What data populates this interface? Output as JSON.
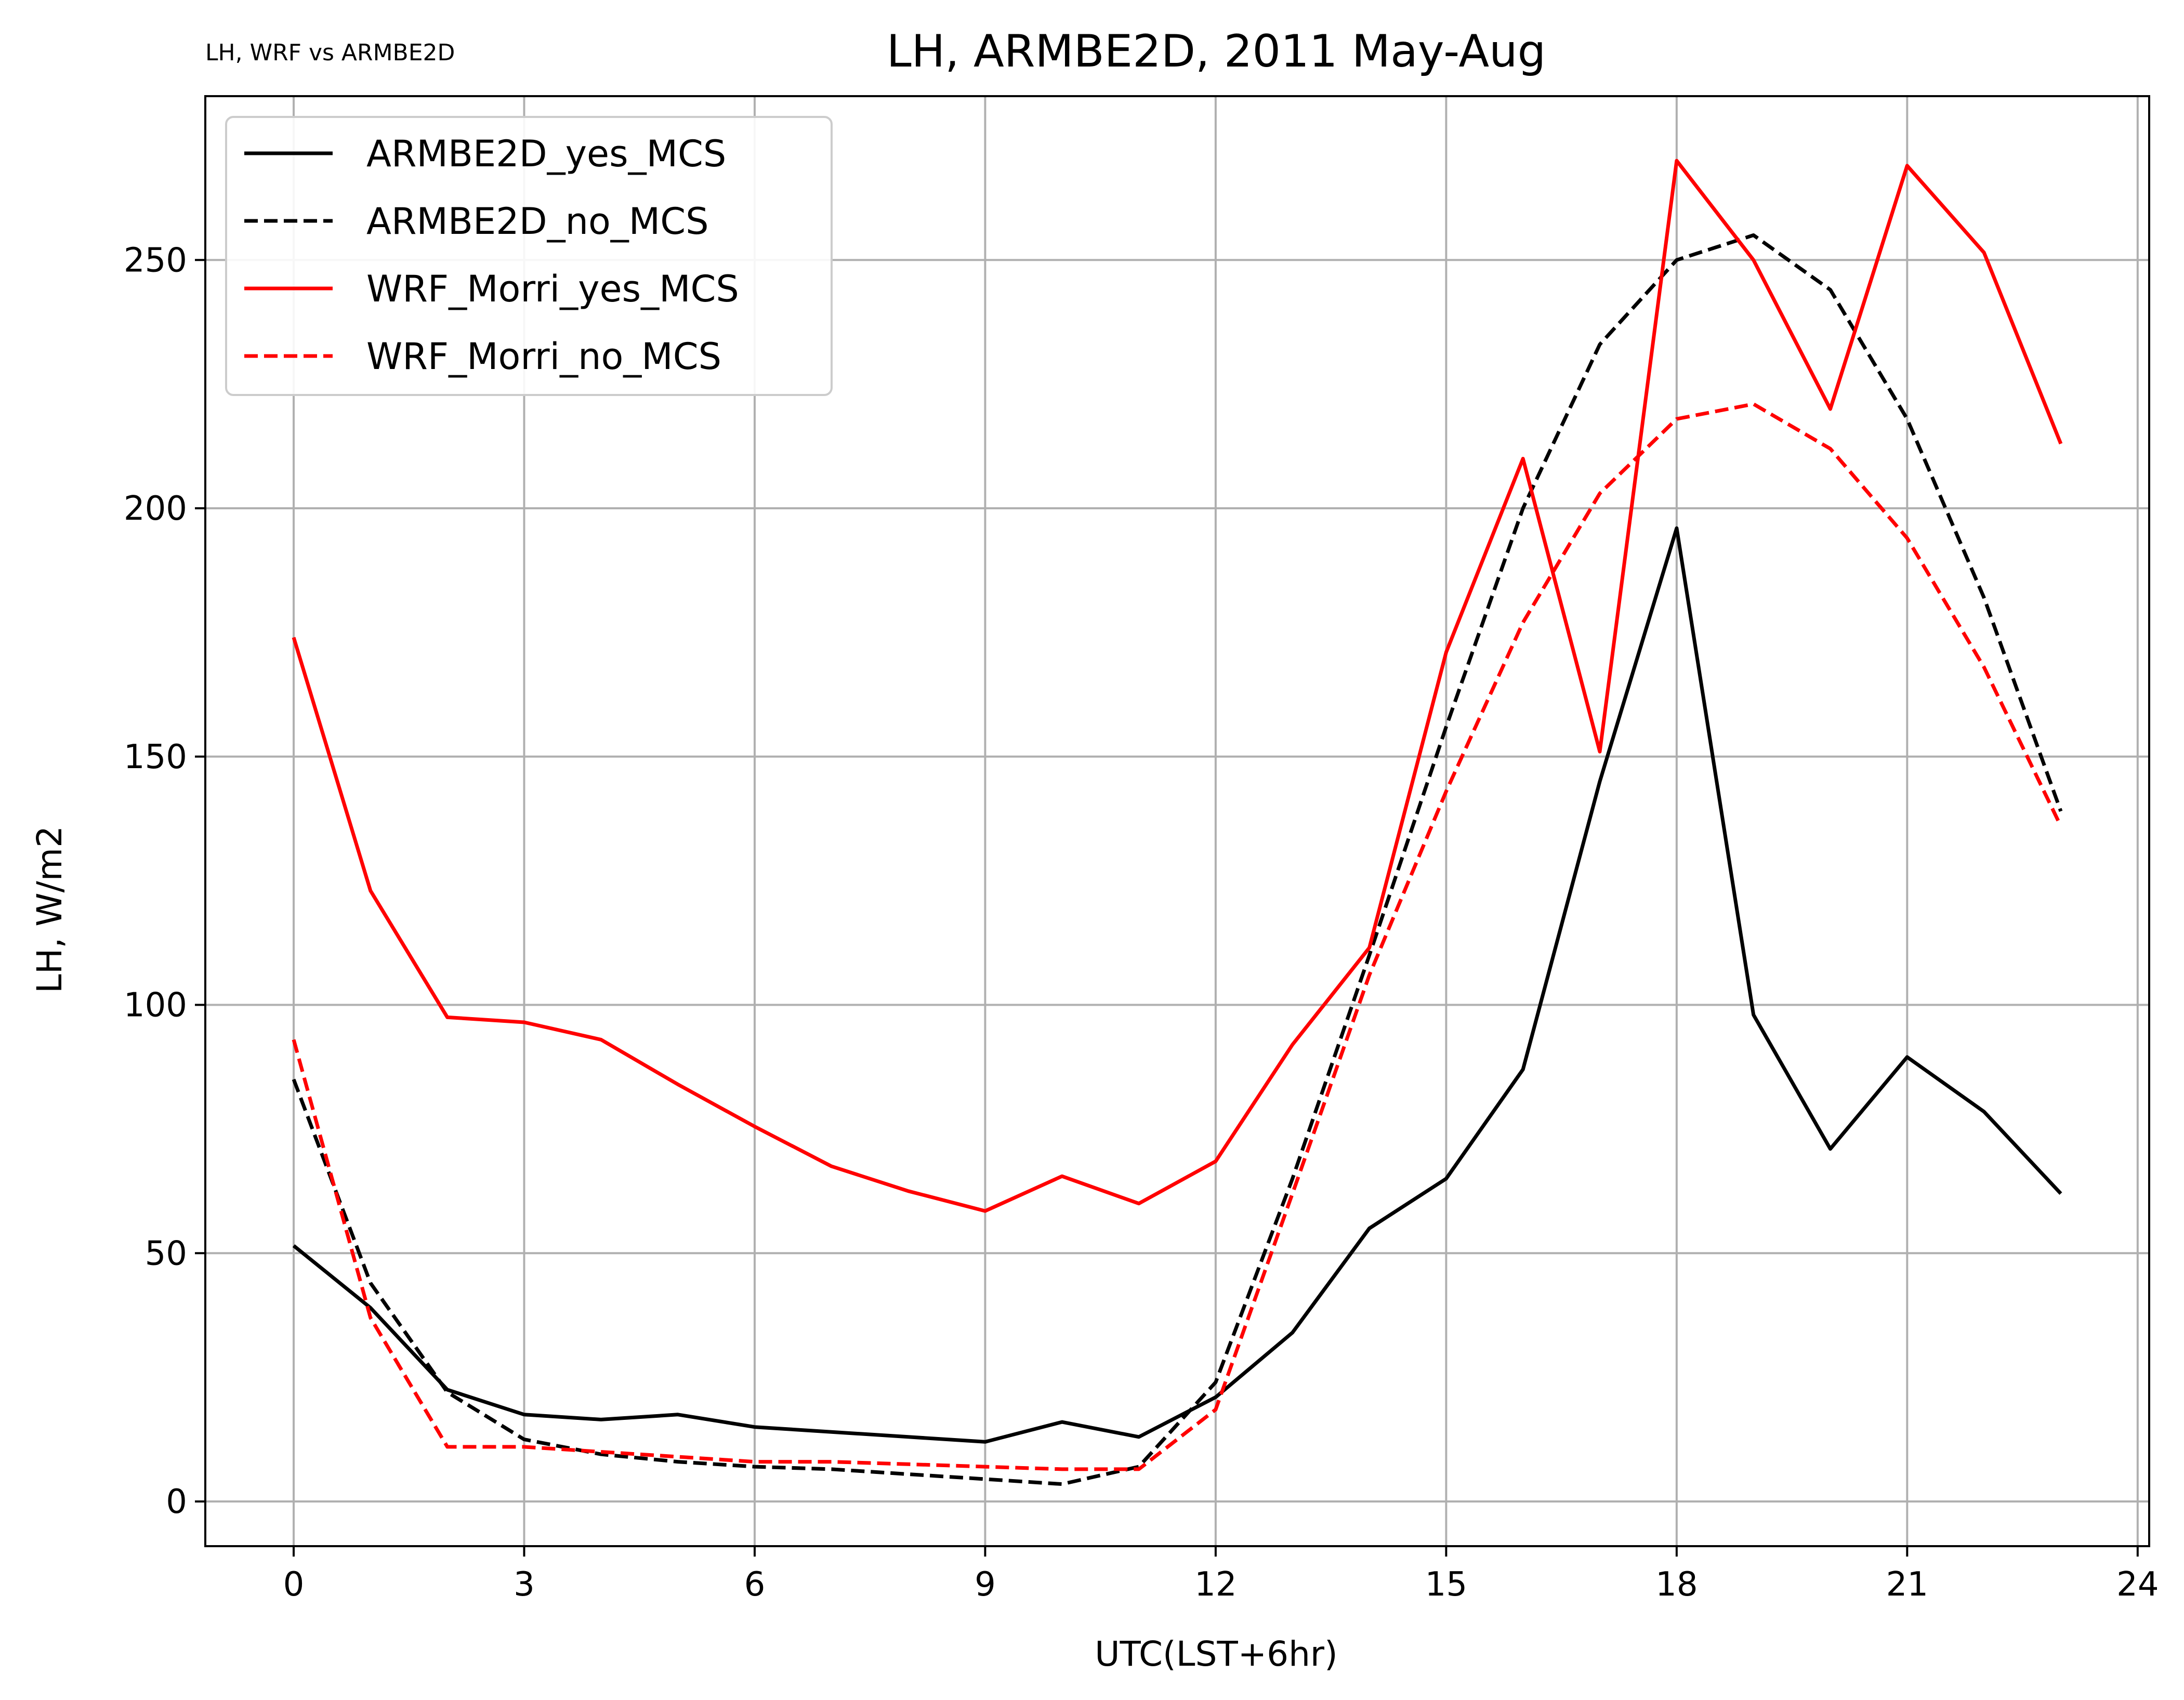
{
  "chart_data": {
    "type": "line",
    "title": "LH, ARMBE2D, 2011 May-Aug",
    "subtitle": "LH, WRF vs ARMBE2D",
    "xlabel": "UTC(LST+6hr)",
    "ylabel": "LH, W/m2",
    "xlim": [
      -1.15,
      24.15
    ],
    "ylim": [
      -9,
      283
    ],
    "xticks": [
      0,
      3,
      6,
      9,
      12,
      15,
      18,
      21,
      24
    ],
    "yticks": [
      0,
      50,
      100,
      150,
      200,
      250
    ],
    "grid": true,
    "legend_position": "top-left",
    "x": [
      0,
      1,
      2,
      3,
      4,
      5,
      6,
      7,
      8,
      9,
      10,
      11,
      12,
      13,
      14,
      15,
      16,
      17,
      18,
      19,
      20,
      21,
      22,
      23
    ],
    "series": [
      {
        "name": "ARMBE2D_yes_MCS",
        "color": "#000000",
        "dash": "solid",
        "values": [
          51.5,
          39,
          22.5,
          17.5,
          16.5,
          17.5,
          15,
          14,
          13,
          12,
          16,
          13,
          21,
          34,
          55,
          65,
          87,
          145,
          196,
          98,
          71,
          89.5,
          78.5,
          62
        ]
      },
      {
        "name": "ARMBE2D_no_MCS",
        "color": "#000000",
        "dash": "dashed",
        "values": [
          85,
          44,
          22,
          12.5,
          9.5,
          8,
          7,
          6.5,
          5.5,
          4.5,
          3.5,
          7,
          24,
          65,
          110,
          156,
          200,
          233,
          250,
          255,
          244,
          218,
          182,
          139
        ]
      },
      {
        "name": "WRF_Morri_yes_MCS",
        "color": "#ff0000",
        "dash": "solid",
        "values": [
          174,
          123,
          97.5,
          96.5,
          93,
          84,
          75.5,
          67.5,
          62.5,
          58.5,
          65.5,
          60,
          68.5,
          92,
          111.5,
          171,
          210,
          151,
          270,
          250,
          220,
          269,
          251.5,
          213
        ]
      },
      {
        "name": "WRF_Morri_no_MCS",
        "color": "#ff0000",
        "dash": "dashed",
        "values": [
          93,
          37,
          11,
          11,
          10,
          9,
          8,
          8,
          7.5,
          7,
          6.5,
          6.5,
          18.5,
          62,
          106,
          143,
          177,
          203,
          218,
          221,
          212,
          194,
          168,
          136
        ]
      }
    ]
  }
}
